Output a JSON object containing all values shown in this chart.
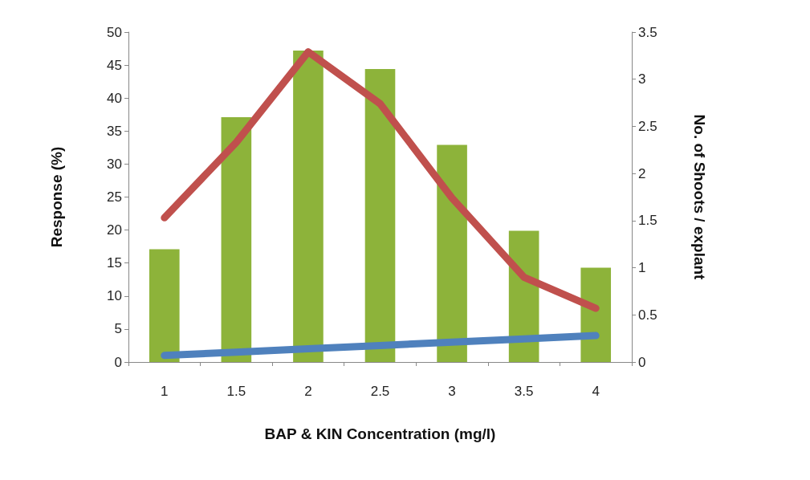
{
  "chart_data": {
    "type": "bar",
    "xlabel": "BAP & KIN Concentration (mg/l)",
    "ylabel": "Response (%)",
    "y2label": "No. of Shoots / explant",
    "categories": [
      "1",
      "1.5",
      "2",
      "2.5",
      "3",
      "3.5",
      "4"
    ],
    "series": [
      {
        "color": "#8db33a",
        "values": [
          17.1,
          37.1,
          47.2,
          44.4,
          32.9,
          19.9,
          14.3
        ]
      },
      {
        "type": "line",
        "color": "#4f81bd",
        "values": [
          1,
          1.5,
          2,
          2.5,
          3,
          3.5,
          4
        ]
      },
      {
        "type": "line",
        "axis": "y2",
        "color": "#c0504d",
        "values": [
          1.53,
          2.33,
          3.29,
          2.74,
          1.74,
          0.9,
          0.57
        ]
      }
    ],
    "ylim": [
      0,
      50
    ],
    "yticks": [
      0,
      5,
      10,
      15,
      20,
      25,
      30,
      35,
      40,
      45,
      50
    ],
    "y2lim": [
      0,
      3.5
    ],
    "y2ticks": [
      0,
      0.5,
      1,
      1.5,
      2,
      2.5,
      3,
      3.5
    ],
    "grid": false,
    "line_style": "solid"
  }
}
